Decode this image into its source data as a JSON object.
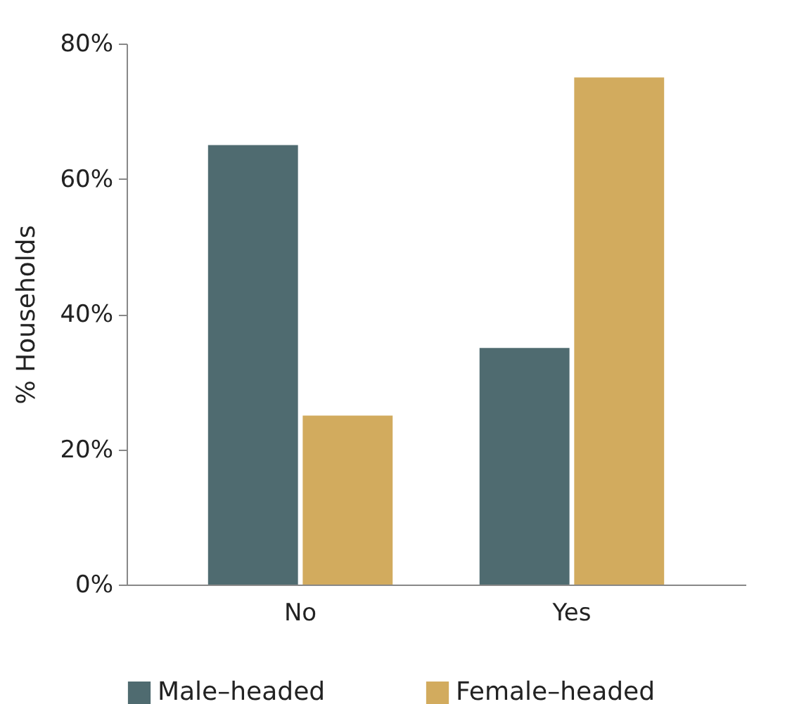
{
  "chart_data": {
    "type": "bar",
    "ylabel": "% Households",
    "categories": [
      "No",
      "Yes"
    ],
    "series": [
      {
        "name": "Male–headed",
        "color": "#4f6b70",
        "values": [
          65,
          35
        ]
      },
      {
        "name": "Female–headed",
        "color": "#d2ab5e",
        "values": [
          25,
          75
        ]
      }
    ],
    "ylim": [
      0,
      80
    ],
    "yticks": [
      {
        "value": 0,
        "label": "0%"
      },
      {
        "value": 20,
        "label": "20%"
      },
      {
        "value": 40,
        "label": "40%"
      },
      {
        "value": 60,
        "label": "60%"
      },
      {
        "value": 80,
        "label": "80%"
      }
    ],
    "grid": false,
    "legend": "bottom"
  }
}
